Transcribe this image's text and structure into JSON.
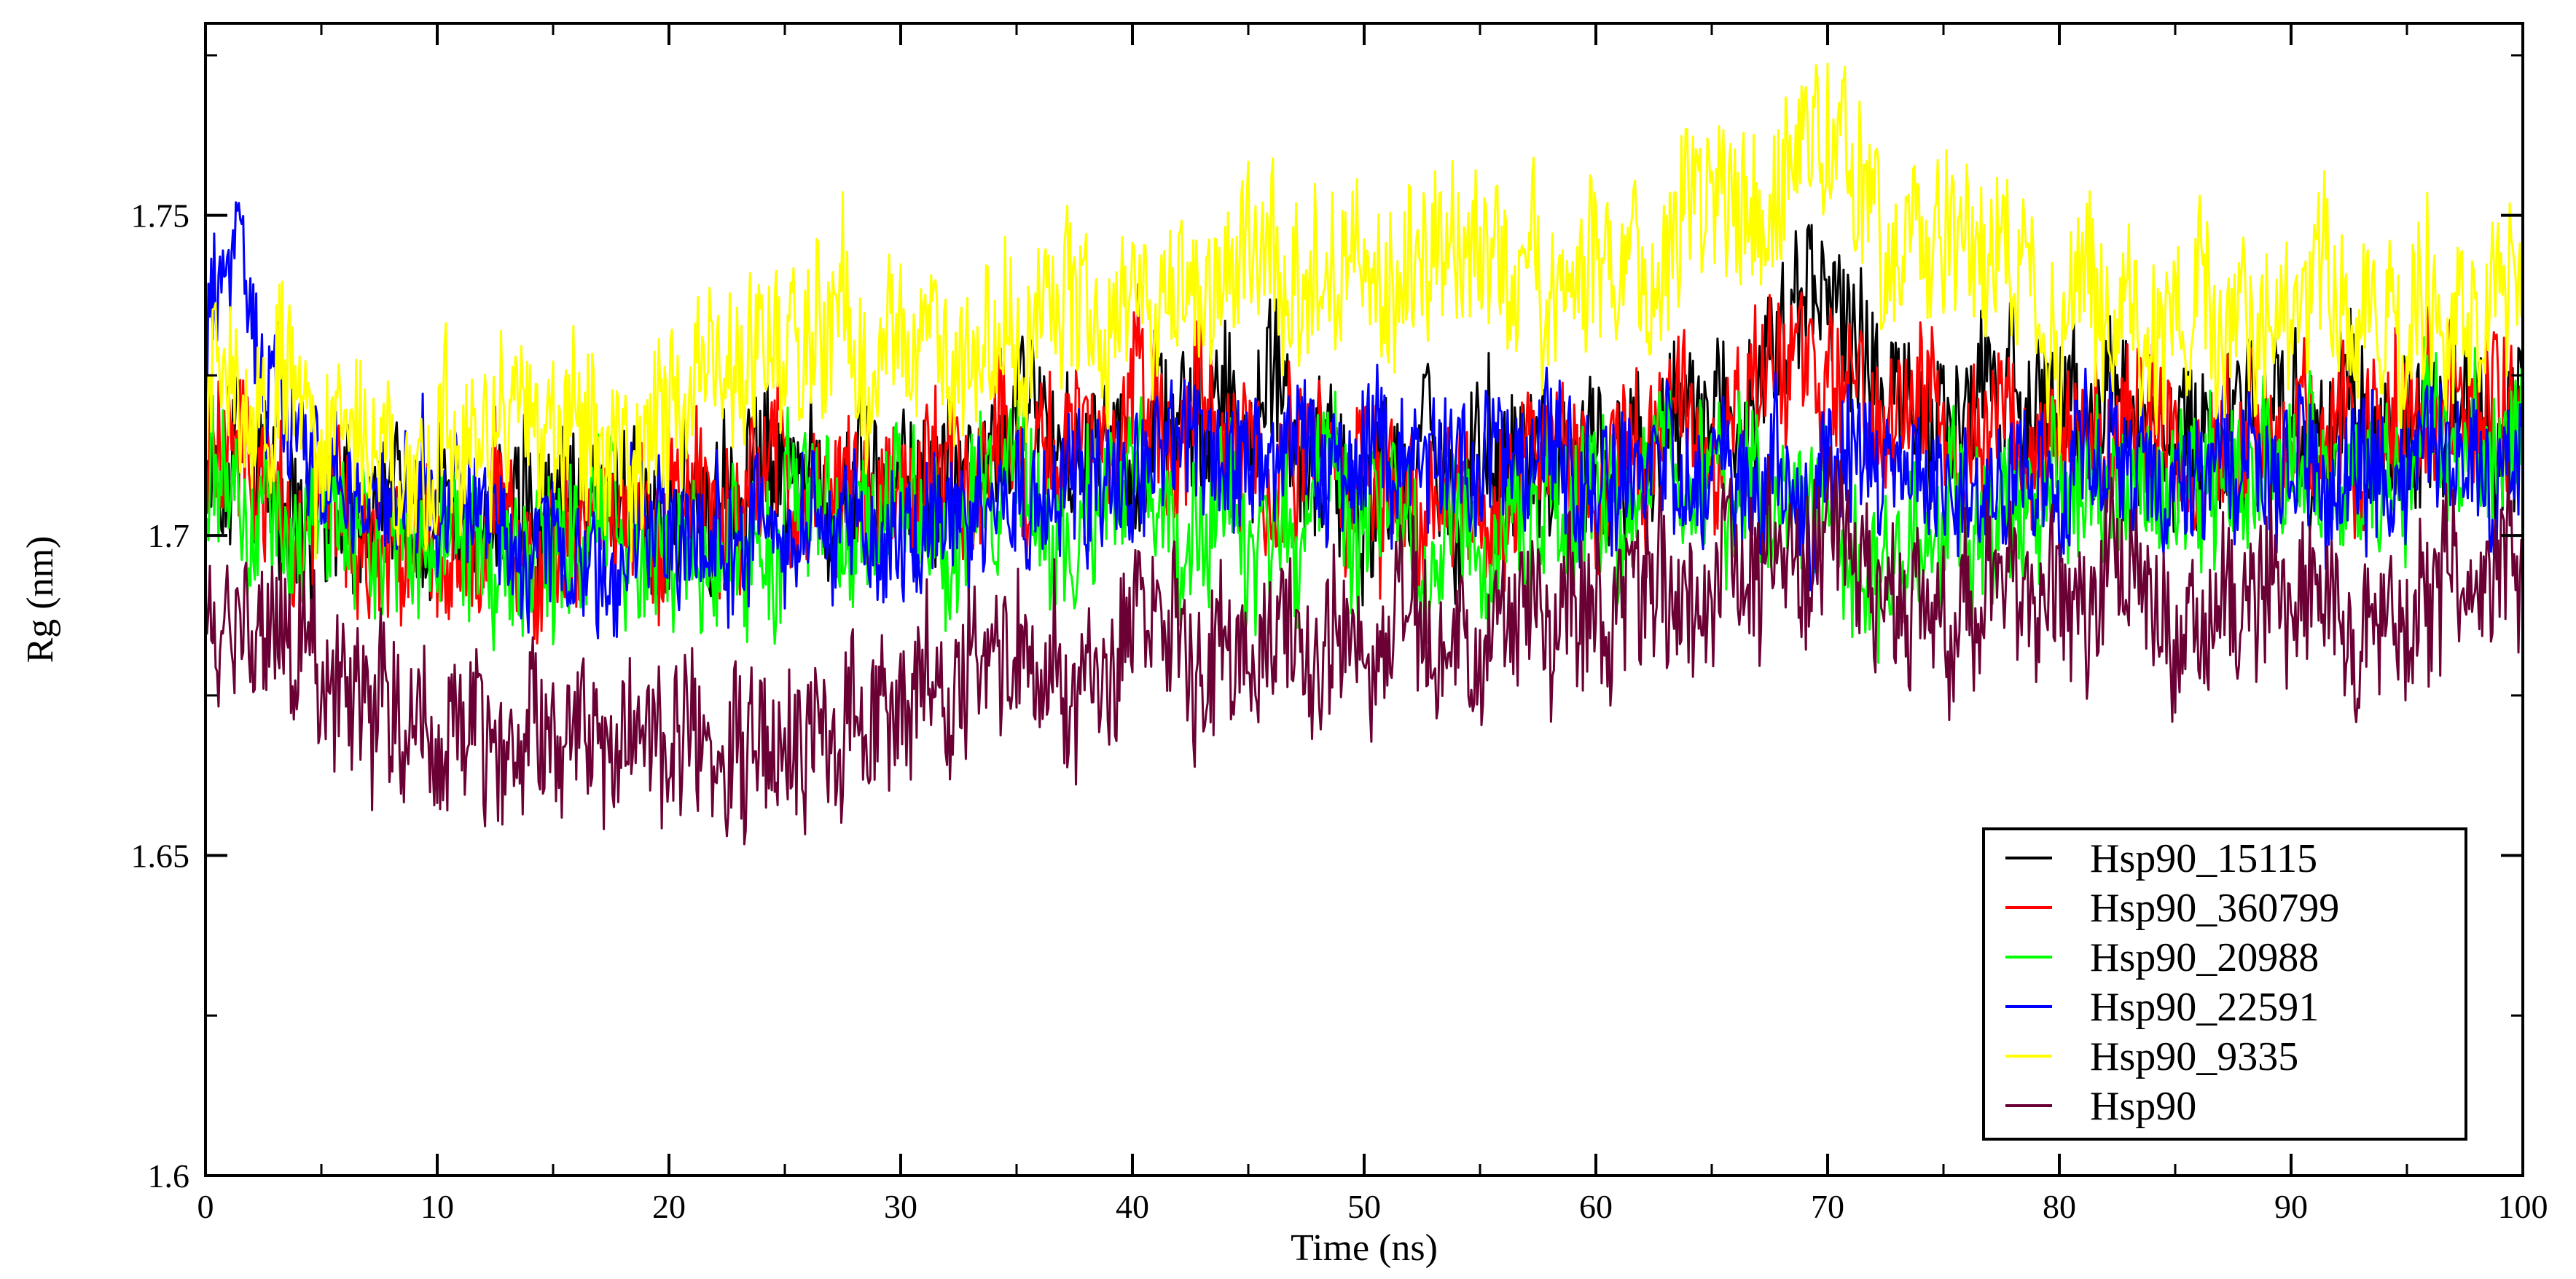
{
  "chart_data": {
    "type": "line",
    "title": "",
    "xlabel": "Time (ns)",
    "ylabel_main": "Rg",
    "ylabel_unit": " (nm)",
    "xlim": [
      0,
      100
    ],
    "ylim": [
      1.6,
      1.78
    ],
    "xticks": [
      0,
      10,
      20,
      30,
      40,
      50,
      60,
      70,
      80,
      90,
      100
    ],
    "yticks": [
      1.6,
      1.65,
      1.7,
      1.75
    ],
    "ytick_labels": [
      "1.6",
      "1.65",
      "1.7",
      "1.75"
    ],
    "grid": false,
    "legend_position": "bottom-right",
    "series": [
      {
        "name": "Hsp90_15115",
        "color": "#000000",
        "x": [
          0,
          2,
          5,
          10,
          15,
          20,
          25,
          30,
          35,
          40,
          45,
          50,
          55,
          60,
          65,
          68,
          70,
          72,
          75,
          80,
          85,
          90,
          95,
          100
        ],
        "y": [
          1.715,
          1.71,
          1.705,
          1.703,
          1.702,
          1.705,
          1.708,
          1.71,
          1.712,
          1.715,
          1.716,
          1.71,
          1.708,
          1.712,
          1.715,
          1.73,
          1.735,
          1.728,
          1.718,
          1.717,
          1.716,
          1.716,
          1.717,
          1.718
        ],
        "noise": 0.009
      },
      {
        "name": "Hsp90_360799",
        "color": "#ff0000",
        "x": [
          0,
          2,
          5,
          10,
          15,
          20,
          25,
          30,
          35,
          40,
          45,
          50,
          55,
          60,
          65,
          68,
          70,
          72,
          75,
          80,
          85,
          90,
          95,
          100
        ],
        "y": [
          1.715,
          1.71,
          1.702,
          1.7,
          1.7,
          1.705,
          1.707,
          1.708,
          1.71,
          1.712,
          1.715,
          1.705,
          1.705,
          1.71,
          1.713,
          1.728,
          1.727,
          1.72,
          1.716,
          1.716,
          1.715,
          1.717,
          1.718,
          1.72
        ],
        "noise": 0.009
      },
      {
        "name": "Hsp90_20988",
        "color": "#00ff00",
        "x": [
          0,
          2,
          5,
          10,
          15,
          20,
          25,
          30,
          35,
          40,
          45,
          50,
          55,
          60,
          65,
          68,
          70,
          72,
          75,
          80,
          85,
          90,
          95,
          100
        ],
        "y": [
          1.71,
          1.705,
          1.7,
          1.698,
          1.697,
          1.698,
          1.702,
          1.703,
          1.704,
          1.705,
          1.703,
          1.7,
          1.7,
          1.703,
          1.712,
          1.705,
          1.7,
          1.698,
          1.7,
          1.705,
          1.707,
          1.71,
          1.712,
          1.71
        ],
        "noise": 0.009
      },
      {
        "name": "Hsp90_22591",
        "color": "#0000ff",
        "x": [
          0,
          1,
          2,
          5,
          10,
          15,
          20,
          25,
          30,
          35,
          40,
          45,
          50,
          55,
          60,
          65,
          70,
          75,
          80,
          85,
          90,
          95,
          100
        ],
        "y": [
          1.73,
          1.745,
          1.73,
          1.705,
          1.703,
          1.698,
          1.7,
          1.703,
          1.703,
          1.705,
          1.708,
          1.71,
          1.712,
          1.712,
          1.712,
          1.708,
          1.71,
          1.708,
          1.71,
          1.71,
          1.708,
          1.71,
          1.71
        ],
        "noise": 0.008
      },
      {
        "name": "Hsp90_9335",
        "color": "#ffff00",
        "x": [
          0,
          2,
          5,
          10,
          15,
          20,
          25,
          30,
          35,
          40,
          45,
          50,
          55,
          60,
          65,
          68,
          70,
          72,
          75,
          80,
          85,
          90,
          95,
          100
        ],
        "y": [
          1.72,
          1.718,
          1.715,
          1.712,
          1.71,
          1.718,
          1.728,
          1.732,
          1.73,
          1.738,
          1.74,
          1.742,
          1.74,
          1.742,
          1.748,
          1.752,
          1.758,
          1.752,
          1.743,
          1.736,
          1.734,
          1.733,
          1.735,
          1.735
        ],
        "noise": 0.01
      },
      {
        "name": "Hsp90",
        "color": "#6b0035",
        "x": [
          0,
          2,
          5,
          10,
          15,
          20,
          25,
          30,
          35,
          40,
          45,
          50,
          55,
          60,
          65,
          68,
          70,
          72,
          75,
          80,
          85,
          90,
          95,
          100
        ],
        "y": [
          1.688,
          1.682,
          1.675,
          1.668,
          1.668,
          1.668,
          1.672,
          1.673,
          1.678,
          1.682,
          1.683,
          1.683,
          1.685,
          1.688,
          1.69,
          1.698,
          1.7,
          1.695,
          1.688,
          1.69,
          1.692,
          1.69,
          1.692,
          1.695
        ],
        "noise": 0.009
      }
    ]
  }
}
